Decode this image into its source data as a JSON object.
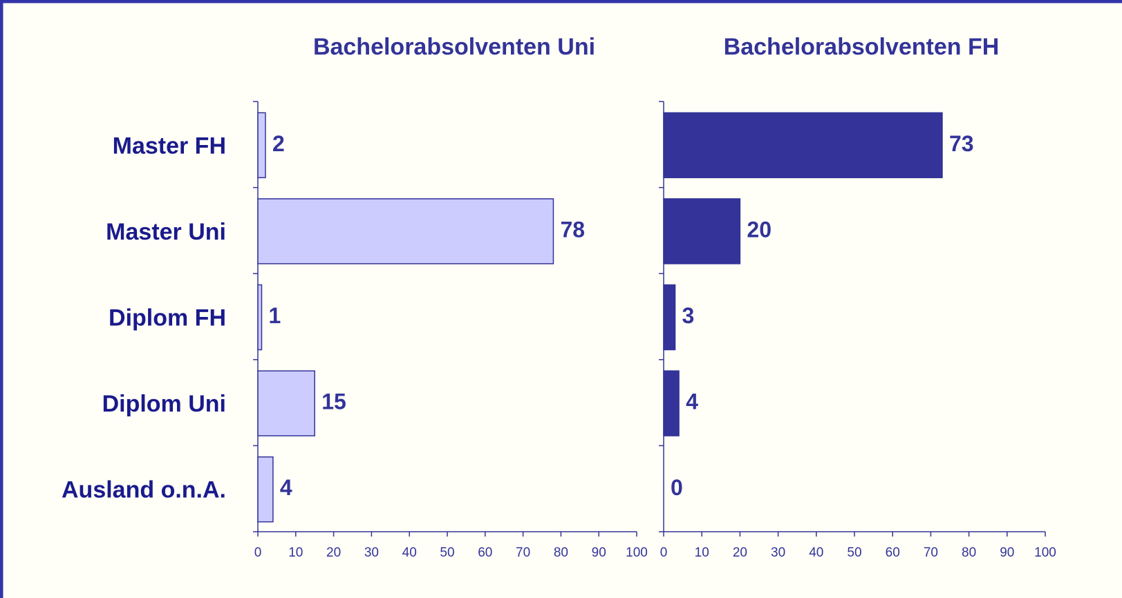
{
  "chart_data": [
    {
      "type": "bar",
      "orientation": "horizontal",
      "title": "Bachelorabsolventen Uni",
      "categories": [
        "Master FH",
        "Master Uni",
        "Diplom FH",
        "Diplom Uni",
        "Ausland o.n.A."
      ],
      "values": [
        2,
        78,
        1,
        15,
        4
      ],
      "color": "#ccccff",
      "xlim": [
        0,
        100
      ],
      "xticks": [
        0,
        10,
        20,
        30,
        40,
        50,
        60,
        70,
        80,
        90,
        100
      ]
    },
    {
      "type": "bar",
      "orientation": "horizontal",
      "title": "Bachelorabsolventen FH",
      "values": [
        73,
        20,
        3,
        4,
        0
      ],
      "color": "#333399",
      "xlim": [
        0,
        100
      ],
      "xticks": [
        0,
        10,
        20,
        30,
        40,
        50,
        60,
        70,
        80,
        90,
        100
      ]
    }
  ]
}
